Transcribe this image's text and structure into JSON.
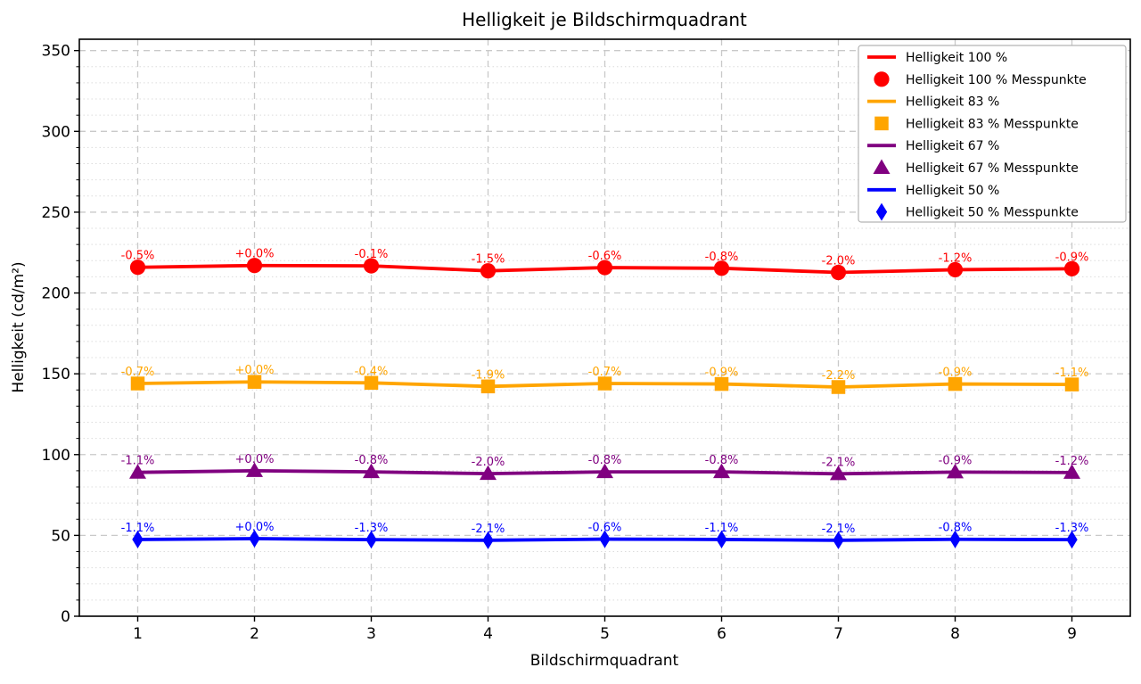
{
  "figure": {
    "title": "Helligkeit je Bildschirmquadrant",
    "xlabel": "Bildschirmquadrant",
    "ylabel": "Helligkeit (cd/m²)"
  },
  "chart_data": {
    "type": "line",
    "title": "Helligkeit je Bildschirmquadrant",
    "xlabel": "Bildschirmquadrant",
    "ylabel": "Helligkeit (cd/m²)",
    "x": [
      1,
      2,
      3,
      4,
      5,
      6,
      7,
      8,
      9
    ],
    "xticks": [
      1,
      2,
      3,
      4,
      5,
      6,
      7,
      8,
      9
    ],
    "yticks": [
      0,
      50,
      100,
      150,
      200,
      250,
      300,
      350
    ],
    "xlim": [
      0.5,
      9.5
    ],
    "ylim": [
      0,
      357
    ],
    "grid": {
      "major": "dashed",
      "minor_y_step": 10,
      "minor_style": "dotted"
    },
    "legend_position": "upper right",
    "colors": {
      "red": "#ff0000",
      "orange": "#ffa500",
      "purple": "#800080",
      "blue": "#0000ff",
      "grid_major": "#c9c9c9",
      "grid_minor": "#dcdcdc",
      "spine": "#000000",
      "legend_border": "#b3b3b3"
    },
    "series": [
      {
        "name": "Helligkeit 100 %",
        "messpunkte_name": "Helligkeit 100 % Messpunkte",
        "color": "#ff0000",
        "marker": "circle",
        "values": [
          215.9,
          217.0,
          216.8,
          213.7,
          215.7,
          215.3,
          212.7,
          214.4,
          215.0
        ],
        "point_labels": [
          "-0.5%",
          "+0.0%",
          "-0.1%",
          "-1.5%",
          "-0.6%",
          "-0.8%",
          "-2.0%",
          "-1.2%",
          "-0.9%"
        ]
      },
      {
        "name": "Helligkeit 83 %",
        "messpunkte_name": "Helligkeit 83 % Messpunkte",
        "color": "#ffa500",
        "marker": "square",
        "values": [
          144.0,
          145.0,
          144.4,
          142.2,
          144.0,
          143.7,
          141.8,
          143.7,
          143.4
        ],
        "point_labels": [
          "-0.7%",
          "+0.0%",
          "-0.4%",
          "-1.9%",
          "-0.7%",
          "-0.9%",
          "-2.2%",
          "-0.9%",
          "-1.1%"
        ]
      },
      {
        "name": "Helligkeit 67 %",
        "messpunkte_name": "Helligkeit 67 % Messpunkte",
        "color": "#800080",
        "marker": "triangle",
        "values": [
          89.0,
          90.0,
          89.3,
          88.2,
          89.3,
          89.3,
          88.1,
          89.2,
          88.9
        ],
        "point_labels": [
          "-1.1%",
          "+0.0%",
          "-0.8%",
          "-2.0%",
          "-0.8%",
          "-0.8%",
          "-2.1%",
          "-0.9%",
          "-1.2%"
        ]
      },
      {
        "name": "Helligkeit 50 %",
        "messpunkte_name": "Helligkeit 50 % Messpunkte",
        "color": "#0000ff",
        "marker": "diamond",
        "values": [
          47.5,
          48.0,
          47.4,
          47.0,
          47.7,
          47.5,
          47.0,
          47.6,
          47.4
        ],
        "point_labels": [
          "-1.1%",
          "+0.0%",
          "-1.3%",
          "-2.1%",
          "-0.6%",
          "-1.1%",
          "-2.1%",
          "-0.8%",
          "-1.3%"
        ]
      }
    ]
  }
}
